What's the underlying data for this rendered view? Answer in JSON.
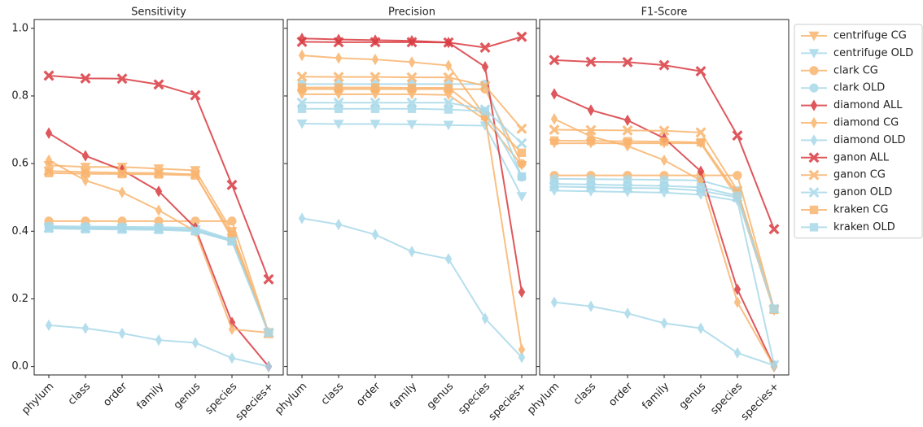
{
  "chart_data": [
    {
      "type": "line",
      "title": "Sensitivity",
      "categories": [
        "phylum",
        "class",
        "order",
        "family",
        "genus",
        "species",
        "species+"
      ],
      "ylim": [
        -0.025,
        1.026
      ],
      "yticks": [
        {
          "value": 0,
          "label": "0.0"
        },
        0.2,
        0.4,
        0.6,
        0.8,
        {
          "value": 1,
          "label": "1.0"
        }
      ],
      "series": [
        {
          "color": "#f9b46e",
          "marker": "v",
          "values": [
            0.595,
            0.59,
            0.59,
            0.585,
            0.58,
            0.4,
            0.1
          ]
        },
        {
          "color": "#a9d9e9",
          "marker": "v",
          "values": [
            0.412,
            0.41,
            0.41,
            0.408,
            0.405,
            0.372,
            0.1
          ]
        },
        {
          "color": "#f9b46e",
          "marker": "o",
          "values": [
            0.43,
            0.43,
            0.43,
            0.43,
            0.43,
            0.43,
            0.1
          ]
        },
        {
          "color": "#a9d9e9",
          "marker": "o",
          "values": [
            0.415,
            0.414,
            0.413,
            0.412,
            0.41,
            0.375,
            0.1
          ]
        },
        {
          "color": "#d93a40",
          "marker": "d",
          "values": [
            0.69,
            0.623,
            0.581,
            0.518,
            0.41,
            0.13,
            0.0
          ]
        },
        {
          "color": "#f9b46e",
          "marker": "d",
          "values": [
            0.61,
            0.55,
            0.515,
            0.462,
            0.4,
            0.11,
            0.1
          ]
        },
        {
          "color": "#a9d9e9",
          "marker": "d",
          "values": [
            0.122,
            0.113,
            0.098,
            0.078,
            0.07,
            0.025,
            0.0
          ]
        },
        {
          "color": "#d93a40",
          "marker": "X",
          "values": [
            0.86,
            0.852,
            0.851,
            0.834,
            0.802,
            0.537,
            0.258
          ]
        },
        {
          "color": "#f9b46e",
          "marker": "X",
          "values": [
            0.578,
            0.575,
            0.573,
            0.572,
            0.568,
            0.38,
            0.098
          ]
        },
        {
          "color": "#a9d9e9",
          "marker": "X",
          "values": [
            0.41,
            0.409,
            0.408,
            0.407,
            0.403,
            0.372,
            0.1
          ]
        },
        {
          "color": "#f9b46e",
          "marker": "s",
          "values": [
            0.572,
            0.57,
            0.569,
            0.568,
            0.565,
            0.39,
            0.097
          ]
        },
        {
          "color": "#a9d9e9",
          "marker": "s",
          "values": [
            0.408,
            0.406,
            0.405,
            0.404,
            0.4,
            0.37,
            0.1
          ]
        }
      ]
    },
    {
      "type": "line",
      "title": "Precision",
      "categories": [
        "phylum",
        "class",
        "order",
        "family",
        "genus",
        "species",
        "species+"
      ],
      "ylim": [
        -0.025,
        1.026
      ],
      "series": [
        {
          "color": "#f9b46e",
          "marker": "v",
          "values": [
            0.805,
            0.805,
            0.805,
            0.805,
            0.803,
            0.73,
            0.595
          ]
        },
        {
          "color": "#a9d9e9",
          "marker": "v",
          "values": [
            0.718,
            0.717,
            0.717,
            0.716,
            0.714,
            0.712,
            0.503
          ]
        },
        {
          "color": "#f9b46e",
          "marker": "o",
          "values": [
            0.82,
            0.82,
            0.82,
            0.82,
            0.82,
            0.82,
            0.6
          ]
        },
        {
          "color": "#a9d9e9",
          "marker": "o",
          "values": [
            0.835,
            0.835,
            0.835,
            0.835,
            0.835,
            0.835,
            0.56
          ]
        },
        {
          "color": "#d93a40",
          "marker": "d",
          "values": [
            0.97,
            0.967,
            0.965,
            0.963,
            0.958,
            0.886,
            0.22
          ]
        },
        {
          "color": "#f9b46e",
          "marker": "d",
          "values": [
            0.92,
            0.912,
            0.908,
            0.9,
            0.89,
            0.74,
            0.05
          ]
        },
        {
          "color": "#a9d9e9",
          "marker": "d",
          "values": [
            0.438,
            0.42,
            0.39,
            0.34,
            0.318,
            0.142,
            0.027
          ]
        },
        {
          "color": "#d93a40",
          "marker": "X",
          "values": [
            0.96,
            0.959,
            0.959,
            0.959,
            0.958,
            0.943,
            0.975
          ]
        },
        {
          "color": "#f9b46e",
          "marker": "X",
          "values": [
            0.857,
            0.856,
            0.856,
            0.855,
            0.855,
            0.83,
            0.703
          ]
        },
        {
          "color": "#a9d9e9",
          "marker": "X",
          "values": [
            0.78,
            0.78,
            0.78,
            0.78,
            0.78,
            0.76,
            0.66
          ]
        },
        {
          "color": "#f9b46e",
          "marker": "s",
          "values": [
            0.825,
            0.825,
            0.825,
            0.824,
            0.824,
            0.74,
            0.632
          ]
        },
        {
          "color": "#a9d9e9",
          "marker": "s",
          "values": [
            0.762,
            0.762,
            0.762,
            0.762,
            0.76,
            0.755,
            0.562
          ]
        }
      ]
    },
    {
      "type": "line",
      "title": "F1-Score",
      "categories": [
        "phylum",
        "class",
        "order",
        "family",
        "genus",
        "species",
        "species+"
      ],
      "ylim": [
        -0.025,
        1.026
      ],
      "legend": "outside right",
      "series": [
        {
          "name": "centrifuge CG",
          "color": "#f9b46e",
          "marker": "v",
          "values": [
            0.66,
            0.66,
            0.66,
            0.66,
            0.66,
            0.5,
            0.165
          ]
        },
        {
          "name": "centrifuge OLD",
          "color": "#a9d9e9",
          "marker": "v",
          "values": [
            0.52,
            0.518,
            0.516,
            0.514,
            0.508,
            0.49,
            0.005
          ]
        },
        {
          "name": "clark CG",
          "color": "#f9b46e",
          "marker": "o",
          "values": [
            0.565,
            0.565,
            0.565,
            0.565,
            0.565,
            0.565,
            0.17
          ]
        },
        {
          "name": "clark OLD",
          "color": "#a9d9e9",
          "marker": "o",
          "values": [
            0.555,
            0.554,
            0.553,
            0.552,
            0.55,
            0.52,
            0.17
          ]
        },
        {
          "name": "diamond ALL",
          "color": "#d93a40",
          "marker": "d",
          "values": [
            0.806,
            0.758,
            0.728,
            0.675,
            0.577,
            0.228,
            0.0
          ]
        },
        {
          "name": "diamond CG",
          "color": "#f9b46e",
          "marker": "d",
          "values": [
            0.732,
            0.68,
            0.652,
            0.61,
            0.55,
            0.19,
            0.0
          ]
        },
        {
          "name": "diamond OLD",
          "color": "#a9d9e9",
          "marker": "d",
          "values": [
            0.19,
            0.178,
            0.157,
            0.128,
            0.113,
            0.04,
            0.003
          ]
        },
        {
          "name": "ganon ALL",
          "color": "#d93a40",
          "marker": "X",
          "values": [
            0.906,
            0.901,
            0.9,
            0.891,
            0.873,
            0.683,
            0.406
          ]
        },
        {
          "name": "ganon CG",
          "color": "#f9b46e",
          "marker": "X",
          "values": [
            0.7,
            0.699,
            0.698,
            0.697,
            0.692,
            0.52,
            0.17
          ]
        },
        {
          "name": "ganon OLD",
          "color": "#a9d9e9",
          "marker": "X",
          "values": [
            0.532,
            0.53,
            0.528,
            0.527,
            0.52,
            0.5,
            0.17
          ]
        },
        {
          "name": "kraken CG",
          "color": "#f9b46e",
          "marker": "s",
          "values": [
            0.668,
            0.667,
            0.666,
            0.665,
            0.663,
            0.51,
            0.168
          ]
        },
        {
          "name": "kraken OLD",
          "color": "#a9d9e9",
          "marker": "s",
          "values": [
            0.54,
            0.538,
            0.536,
            0.534,
            0.53,
            0.505,
            0.17
          ]
        }
      ]
    }
  ]
}
